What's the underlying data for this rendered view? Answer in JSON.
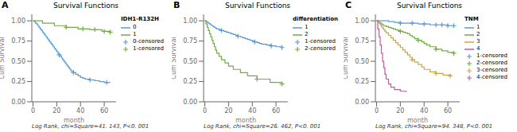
{
  "chart_data": [
    {
      "type": "line",
      "panel_label": "A",
      "title": "Survival Functions",
      "xlabel": "month",
      "ylabel": "Cum Survival",
      "xlim": [
        -1,
        70
      ],
      "ylim": [
        0.0,
        1.08
      ],
      "xticks": [
        0,
        20,
        40,
        60
      ],
      "yticks": [
        {
          "value": 0,
          "label": "0.00"
        },
        0.25,
        {
          "value": 0.5,
          "label": "0.50"
        },
        0.75,
        {
          "value": 1,
          "label": "1.00"
        }
      ],
      "legend": "right",
      "legend_title": "IDH1-R132H",
      "annotation": "Log Rank, chi=Square=41. 143, P<0. 001",
      "series": [
        {
          "name": "0",
          "type": "line",
          "line_style": "step",
          "color": "#5b9bd5",
          "x": [
            0,
            1,
            2,
            3,
            4,
            5,
            6,
            7,
            8,
            9,
            10,
            11,
            12,
            13,
            14,
            15,
            16,
            17,
            18,
            19,
            20,
            21,
            22,
            23,
            24,
            25,
            26,
            27,
            28,
            29,
            30,
            31,
            32,
            34,
            36,
            38,
            40,
            42,
            44,
            48,
            52,
            56,
            60,
            65
          ],
          "values": [
            1.0,
            0.99,
            0.97,
            0.96,
            0.94,
            0.92,
            0.9,
            0.88,
            0.86,
            0.84,
            0.82,
            0.8,
            0.78,
            0.76,
            0.74,
            0.72,
            0.7,
            0.68,
            0.66,
            0.64,
            0.62,
            0.6,
            0.58,
            0.56,
            0.54,
            0.52,
            0.5,
            0.48,
            0.46,
            0.44,
            0.42,
            0.4,
            0.38,
            0.36,
            0.34,
            0.32,
            0.3,
            0.29,
            0.28,
            0.27,
            0.26,
            0.25,
            0.24,
            0.24
          ]
        },
        {
          "name": "1",
          "type": "line",
          "line_style": "step",
          "color": "#70ad47",
          "x": [
            0,
            8,
            18,
            28,
            38,
            48,
            58,
            65
          ],
          "values": [
            1.0,
            0.97,
            0.94,
            0.92,
            0.9,
            0.89,
            0.87,
            0.86
          ]
        },
        {
          "name": "0-censored",
          "type": "scatter",
          "marker": "plus",
          "color": "#5b9bd5",
          "x": [
            22,
            34,
            48,
            62
          ],
          "values": [
            0.58,
            0.36,
            0.27,
            0.24
          ]
        },
        {
          "name": "1-censored",
          "type": "scatter",
          "marker": "plus",
          "color": "#70ad47",
          "x": [
            28,
            42,
            52,
            60,
            65
          ],
          "values": [
            0.92,
            0.9,
            0.89,
            0.87,
            0.86
          ]
        }
      ]
    },
    {
      "type": "line",
      "panel_label": "B",
      "title": "Survival Functions",
      "xlabel": "month",
      "ylabel": "Cum Survival",
      "xlim": [
        -1,
        70
      ],
      "ylim": [
        0.0,
        1.08
      ],
      "xticks": [
        0,
        20,
        40,
        60
      ],
      "yticks": [
        {
          "value": 0,
          "label": "0.00"
        },
        0.25,
        {
          "value": 0.5,
          "label": "0.50"
        },
        0.75,
        {
          "value": 1,
          "label": "1.00"
        }
      ],
      "legend": "right",
      "legend_title": "differentiation",
      "annotation": "Log Rank, chi=Square=26. 462, P<0. 001",
      "series": [
        {
          "name": "1",
          "type": "line",
          "line_style": "step",
          "color": "#5b9bd5",
          "x": [
            0,
            1,
            2,
            3,
            4,
            5,
            6,
            7,
            8,
            9,
            10,
            12,
            14,
            16,
            18,
            20,
            22,
            24,
            26,
            28,
            30,
            32,
            34,
            36,
            38,
            40,
            42,
            44,
            46,
            48,
            52,
            56,
            60,
            65
          ],
          "values": [
            1.0,
            0.99,
            0.98,
            0.97,
            0.96,
            0.95,
            0.94,
            0.93,
            0.92,
            0.91,
            0.9,
            0.89,
            0.88,
            0.87,
            0.86,
            0.85,
            0.84,
            0.83,
            0.82,
            0.81,
            0.8,
            0.79,
            0.78,
            0.77,
            0.76,
            0.75,
            0.74,
            0.73,
            0.72,
            0.71,
            0.7,
            0.69,
            0.68,
            0.67
          ]
        },
        {
          "name": "2",
          "type": "line",
          "line_style": "step",
          "color": "#70ad47",
          "x": [
            0,
            1,
            2,
            3,
            4,
            5,
            6,
            7,
            8,
            9,
            10,
            12,
            14,
            17,
            20,
            24,
            30,
            36,
            44,
            55,
            65
          ],
          "values": [
            1.0,
            0.96,
            0.92,
            0.88,
            0.84,
            0.8,
            0.76,
            0.72,
            0.68,
            0.64,
            0.6,
            0.56,
            0.52,
            0.48,
            0.44,
            0.4,
            0.36,
            0.32,
            0.28,
            0.24,
            0.22
          ]
        },
        {
          "name": "1-censored",
          "type": "scatter",
          "marker": "plus",
          "color": "#5b9bd5",
          "x": [
            14,
            28,
            42,
            56,
            65
          ],
          "values": [
            0.88,
            0.81,
            0.74,
            0.69,
            0.67
          ]
        },
        {
          "name": "2-censored",
          "type": "scatter",
          "marker": "plus",
          "color": "#70ad47",
          "x": [
            44,
            65
          ],
          "values": [
            0.28,
            0.22
          ]
        }
      ]
    },
    {
      "type": "line",
      "panel_label": "C",
      "title": "Survival Functions",
      "xlabel": "month",
      "ylabel": "Cum Survival",
      "xlim": [
        -1,
        70
      ],
      "ylim": [
        0.0,
        1.08
      ],
      "xticks": [
        0,
        20,
        40,
        60
      ],
      "yticks": [
        {
          "value": 0,
          "label": "0.00"
        },
        0.25,
        {
          "value": 0.5,
          "label": "0.50"
        },
        0.75,
        {
          "value": 1,
          "label": "1.00"
        }
      ],
      "legend": "right",
      "legend_title": "TNM",
      "annotation": "Log Rank, chi=Square=94. 348, P<0. 001",
      "series": [
        {
          "name": "1",
          "type": "line",
          "line_style": "step",
          "color": "#5b9bd5",
          "x": [
            0,
            5,
            10,
            15,
            20,
            25,
            30,
            35,
            40,
            45,
            50,
            55,
            60,
            65
          ],
          "values": [
            1.0,
            1.0,
            0.99,
            0.98,
            0.97,
            0.97,
            0.97,
            0.96,
            0.96,
            0.95,
            0.95,
            0.95,
            0.94,
            0.94
          ]
        },
        {
          "name": "2",
          "type": "line",
          "line_style": "step",
          "color": "#70ad47",
          "x": [
            0,
            1,
            2,
            3,
            4,
            5,
            6,
            8,
            10,
            12,
            14,
            16,
            18,
            20,
            22,
            24,
            26,
            28,
            30,
            32,
            35,
            38,
            40,
            42,
            45,
            50,
            55,
            60,
            65
          ],
          "values": [
            1.0,
            0.99,
            0.98,
            0.97,
            0.96,
            0.95,
            0.94,
            0.93,
            0.92,
            0.91,
            0.9,
            0.89,
            0.88,
            0.87,
            0.86,
            0.85,
            0.84,
            0.82,
            0.8,
            0.78,
            0.76,
            0.74,
            0.72,
            0.7,
            0.68,
            0.65,
            0.63,
            0.61,
            0.6
          ]
        },
        {
          "name": "3",
          "type": "line",
          "line_style": "step",
          "color": "#c8a84b",
          "x": [
            0,
            1,
            2,
            3,
            4,
            5,
            6,
            7,
            8,
            10,
            12,
            14,
            16,
            18,
            20,
            22,
            24,
            26,
            28,
            30,
            32,
            35,
            38,
            40,
            45,
            50,
            56,
            62
          ],
          "values": [
            1.0,
            0.99,
            0.97,
            0.95,
            0.93,
            0.91,
            0.89,
            0.87,
            0.85,
            0.82,
            0.79,
            0.76,
            0.73,
            0.7,
            0.67,
            0.64,
            0.61,
            0.58,
            0.55,
            0.52,
            0.49,
            0.46,
            0.43,
            0.4,
            0.37,
            0.35,
            0.33,
            0.32
          ]
        },
        {
          "name": "4",
          "type": "line",
          "line_style": "step",
          "color": "#c55a9d",
          "x": [
            0,
            1,
            2,
            3,
            4,
            5,
            6,
            7,
            8,
            10,
            12,
            15,
            20,
            25
          ],
          "values": [
            1.0,
            0.9,
            0.8,
            0.7,
            0.6,
            0.5,
            0.42,
            0.34,
            0.28,
            0.22,
            0.18,
            0.15,
            0.13,
            0.12
          ]
        },
        {
          "name": "1-censored",
          "type": "scatter",
          "marker": "plus",
          "color": "#5b9bd5",
          "x": [
            20,
            30,
            40,
            50,
            55,
            60,
            65
          ],
          "values": [
            0.97,
            0.97,
            0.96,
            0.95,
            0.95,
            0.94,
            0.94
          ]
        },
        {
          "name": "2-censored",
          "type": "scatter",
          "marker": "plus",
          "color": "#70ad47",
          "x": [
            20,
            35,
            50,
            65
          ],
          "values": [
            0.87,
            0.76,
            0.65,
            0.6
          ]
        },
        {
          "name": "3-censored",
          "type": "scatter",
          "marker": "plus",
          "color": "#c8a84b",
          "x": [
            30,
            50,
            62
          ],
          "values": [
            0.52,
            0.35,
            0.32
          ]
        },
        {
          "name": "4-censored",
          "type": "scatter",
          "marker": "plus",
          "color": "#c55a9d",
          "x": [],
          "values": []
        }
      ]
    }
  ]
}
